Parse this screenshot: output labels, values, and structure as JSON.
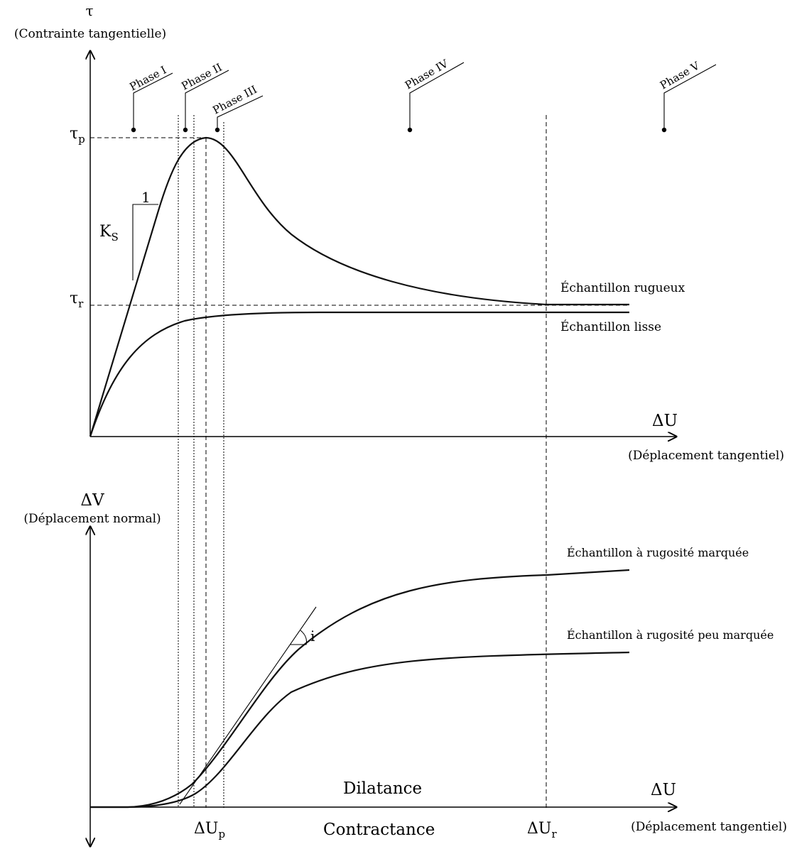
{
  "top": {
    "y_symbol": "τ",
    "y_label": "(Contrainte tangentielle)",
    "x_symbol": "ΔU",
    "x_label": "(Déplacement tangentiel)",
    "tau_p": "τ",
    "tau_p_sub": "p",
    "tau_r": "τ",
    "tau_r_sub": "r",
    "ks": "K",
    "ks_sub": "S",
    "slope_one": "1",
    "phases": [
      "Phase I",
      "Phase II",
      "Phase III",
      "Phase IV",
      "Phase V"
    ],
    "curve_rough": "Échantillon rugueux",
    "curve_smooth": "Échantillon lisse"
  },
  "bottom": {
    "y_symbol": "ΔV",
    "y_label": "(Déplacement normal)",
    "x_symbol": "ΔU",
    "x_label": "(Déplacement tangentiel)",
    "du_p": "ΔU",
    "du_p_sub": "p",
    "du_r": "ΔU",
    "du_r_sub": "r",
    "dilatance": "Dilatance",
    "contractance": "Contractance",
    "angle": "i",
    "curve_marked": "Échantillon à rugosité marquée",
    "curve_little": "Échantillon à rugosité peu marquée"
  }
}
